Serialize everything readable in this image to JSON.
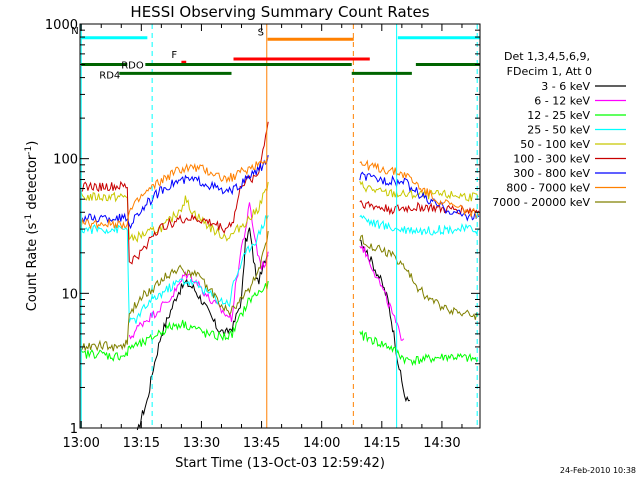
{
  "chart_data": {
    "type": "line",
    "title": "HESSI Observing Summary Count Rates",
    "xlabel": "Start Time (13-Oct-03 12:59:42)",
    "ylabel": {
      "prefix": "Count Rate (s",
      "sup1": "-1",
      "middle": " detector",
      "sup2": "-1",
      "suffix": ")"
    },
    "y_scale": "log",
    "ylim": [
      1,
      1000
    ],
    "x_unit": "minutes after 13:00",
    "xlim": [
      -0.3,
      99.5
    ],
    "x_ticks": [
      {
        "t": 0,
        "label": "13:00"
      },
      {
        "t": 15,
        "label": "13:15"
      },
      {
        "t": 30,
        "label": "13:30"
      },
      {
        "t": 45,
        "label": "13:45"
      },
      {
        "t": 60,
        "label": "14:00"
      },
      {
        "t": 75,
        "label": "14:15"
      },
      {
        "t": 90,
        "label": "14:30"
      }
    ],
    "y_ticks": [
      {
        "v": 1,
        "label": "1"
      },
      {
        "v": 10,
        "label": "10"
      },
      {
        "v": 100,
        "label": "100"
      },
      {
        "v": 1000,
        "label": "1000"
      }
    ],
    "legend": {
      "placement": "right",
      "header": [
        "Det 1,3,4,5,6,9,",
        "FDecim 1, Att 0"
      ]
    },
    "timestamp": "24-Feb-2010 10:38",
    "flag_bars": [
      {
        "label": "N",
        "color": "#00ffff",
        "y": 790,
        "segments": [
          [
            0,
            16.5
          ],
          [
            79,
            99.5
          ]
        ]
      },
      {
        "label": "F",
        "color": "#ff0000",
        "y": 520,
        "segments": [
          [
            25,
            26.2
          ]
        ]
      },
      {
        "label": "S",
        "color": "#ff8000",
        "y": 770,
        "segments": [
          [
            46.5,
            68
          ]
        ]
      },
      {
        "label": "",
        "color": "#ff0000",
        "y": 550,
        "segments": [
          [
            38,
            72
          ]
        ]
      },
      {
        "label": "RDO",
        "color": "#006400",
        "y": 500,
        "segments": [
          [
            0,
            11.5
          ],
          [
            16,
            37.5
          ],
          [
            37.5,
            67.5
          ],
          [
            83.5,
            99.5
          ]
        ]
      },
      {
        "label": "RD4",
        "color": "#006400",
        "y": 430,
        "segments": [
          [
            9.5,
            37.5
          ],
          [
            67.5,
            82.5
          ]
        ]
      }
    ],
    "vlines": [
      {
        "t": 0,
        "color": "#00ffff",
        "style": "solid"
      },
      {
        "t": 17.7,
        "color": "#00ffff",
        "style": "dashed"
      },
      {
        "t": 46.3,
        "color": "#ff8000",
        "style": "solid"
      },
      {
        "t": 67.9,
        "color": "#ff8000",
        "style": "dashed"
      },
      {
        "t": 78.7,
        "color": "#00ffff",
        "style": "solid"
      },
      {
        "t": 98.8,
        "color": "#00ffff",
        "style": "dashed"
      }
    ],
    "series": [
      {
        "name": "3 - 6 keV",
        "color": "#000000",
        "points": [
          [
            14,
            0.9
          ],
          [
            15,
            1.2
          ],
          [
            16.5,
            1.6
          ],
          [
            18,
            2.8
          ],
          [
            20,
            5
          ],
          [
            22,
            7
          ],
          [
            24,
            10
          ],
          [
            26,
            12
          ],
          [
            28,
            11
          ],
          [
            30,
            9
          ],
          [
            32,
            7
          ],
          [
            34,
            5.5
          ],
          [
            36,
            5
          ],
          [
            38,
            5.8
          ],
          [
            40,
            9
          ],
          [
            41,
            24
          ],
          [
            42,
            30
          ],
          [
            43,
            18
          ],
          [
            44,
            12
          ],
          [
            45,
            14
          ],
          [
            46,
            18
          ],
          [
            47,
            22
          ],
          [
            69.5,
            26
          ],
          [
            71,
            21
          ],
          [
            73,
            16
          ],
          [
            75,
            12
          ],
          [
            76.5,
            9
          ],
          [
            78,
            5
          ],
          [
            79,
            3.2
          ],
          [
            80,
            2.2
          ],
          [
            81,
            1.6
          ],
          [
            82,
            1.6
          ]
        ]
      },
      {
        "name": "6 - 12 keV",
        "color": "#ff00ff",
        "points": [
          [
            12,
            4.6
          ],
          [
            15,
            6
          ],
          [
            18,
            7
          ],
          [
            20,
            8
          ],
          [
            22,
            9
          ],
          [
            24,
            11
          ],
          [
            26,
            14
          ],
          [
            28,
            13
          ],
          [
            30,
            11
          ],
          [
            32,
            9
          ],
          [
            34,
            8
          ],
          [
            36,
            7
          ],
          [
            37.5,
            6.5
          ],
          [
            38.5,
            11
          ],
          [
            40,
            22
          ],
          [
            41,
            30
          ],
          [
            42,
            45
          ],
          [
            43,
            30
          ],
          [
            44,
            20
          ],
          [
            45,
            16
          ],
          [
            46,
            17
          ],
          [
            47,
            20
          ],
          [
            69.5,
            24
          ],
          [
            71,
            20
          ],
          [
            73,
            15
          ],
          [
            75,
            11
          ],
          [
            77,
            8
          ],
          [
            78.5,
            6
          ],
          [
            79.5,
            5
          ],
          [
            80.5,
            4.6
          ]
        ]
      },
      {
        "name": "12 - 25 keV",
        "color": "#00ff00",
        "points": [
          [
            0,
            3.5
          ],
          [
            4,
            3.6
          ],
          [
            8,
            3.4
          ],
          [
            11.5,
            3.5
          ],
          [
            12,
            4
          ],
          [
            15,
            4.2
          ],
          [
            17,
            4.5
          ],
          [
            19,
            5
          ],
          [
            22,
            5.6
          ],
          [
            25,
            6
          ],
          [
            28,
            5.6
          ],
          [
            31,
            5
          ],
          [
            34,
            4.8
          ],
          [
            37,
            4.8
          ],
          [
            38,
            5.2
          ],
          [
            40,
            7
          ],
          [
            42,
            9
          ],
          [
            44,
            10
          ],
          [
            46,
            11
          ],
          [
            47,
            12
          ],
          [
            69.5,
            5
          ],
          [
            72,
            4.6
          ],
          [
            75,
            4.2
          ],
          [
            77,
            4
          ],
          [
            79,
            3.6
          ],
          [
            81,
            3.2
          ],
          [
            84,
            3.2
          ],
          [
            88,
            3.3
          ],
          [
            92,
            3.4
          ],
          [
            96,
            3.3
          ],
          [
            99,
            3.2
          ]
        ]
      },
      {
        "name": "25 - 50 keV",
        "color": "#00ffff",
        "points": [
          [
            0,
            30
          ],
          [
            4,
            30
          ],
          [
            8,
            30
          ],
          [
            11.5,
            30
          ],
          [
            12,
            6
          ],
          [
            14,
            6.5
          ],
          [
            16,
            8
          ],
          [
            18,
            9
          ],
          [
            20,
            10
          ],
          [
            22,
            11
          ],
          [
            25,
            12.5
          ],
          [
            28,
            12
          ],
          [
            31,
            10.5
          ],
          [
            34,
            9
          ],
          [
            37,
            8.5
          ],
          [
            38,
            12
          ],
          [
            40,
            17
          ],
          [
            42,
            22
          ],
          [
            44,
            26
          ],
          [
            46,
            36
          ],
          [
            47,
            40
          ],
          [
            69.5,
            38
          ],
          [
            72,
            34
          ],
          [
            75,
            32
          ],
          [
            77,
            31
          ],
          [
            79,
            30
          ],
          [
            82,
            30
          ],
          [
            86,
            29
          ],
          [
            90,
            30
          ],
          [
            94,
            30
          ],
          [
            98,
            30
          ],
          [
            99.2,
            30
          ]
        ]
      },
      {
        "name": "50 - 100 keV",
        "color": "#c8c800",
        "points": [
          [
            0,
            52
          ],
          [
            5,
            52
          ],
          [
            11.5,
            52
          ],
          [
            12,
            25
          ],
          [
            15,
            27
          ],
          [
            18,
            29
          ],
          [
            21,
            32
          ],
          [
            24,
            40
          ],
          [
            25,
            44
          ],
          [
            26,
            50
          ],
          [
            27,
            44
          ],
          [
            28,
            40
          ],
          [
            31,
            33
          ],
          [
            34,
            28
          ],
          [
            37,
            26
          ],
          [
            38,
            28
          ],
          [
            40,
            32
          ],
          [
            42,
            36
          ],
          [
            44,
            42
          ],
          [
            46,
            58
          ],
          [
            47,
            66
          ],
          [
            69.5,
            64
          ],
          [
            72,
            60
          ],
          [
            75,
            56
          ],
          [
            78,
            55
          ],
          [
            81,
            54
          ],
          [
            85,
            54
          ],
          [
            90,
            54
          ],
          [
            95,
            53
          ],
          [
            99,
            52
          ]
        ]
      },
      {
        "name": "100 - 300 keV",
        "color": "#c80000",
        "points": [
          [
            0,
            62
          ],
          [
            5,
            62
          ],
          [
            11.5,
            62
          ],
          [
            12,
            17
          ],
          [
            15,
            20
          ],
          [
            18,
            28
          ],
          [
            21,
            32
          ],
          [
            24,
            35
          ],
          [
            27,
            36
          ],
          [
            30,
            35
          ],
          [
            33,
            33
          ],
          [
            36,
            30
          ],
          [
            38,
            35
          ],
          [
            40,
            65
          ],
          [
            42,
            70
          ],
          [
            44,
            76
          ],
          [
            45,
            100
          ],
          [
            46,
            150
          ],
          [
            47,
            215
          ],
          [
            69.5,
            48
          ],
          [
            72,
            45
          ],
          [
            75,
            43
          ],
          [
            78,
            42
          ],
          [
            82,
            43
          ],
          [
            86,
            44
          ],
          [
            90,
            42
          ],
          [
            94,
            42
          ],
          [
            98,
            41
          ],
          [
            99.2,
            41
          ]
        ]
      },
      {
        "name": "300 - 800 keV",
        "color": "#0000ff",
        "points": [
          [
            0,
            36
          ],
          [
            5,
            36
          ],
          [
            11.5,
            36
          ],
          [
            12,
            32
          ],
          [
            15,
            42
          ],
          [
            18,
            52
          ],
          [
            21,
            62
          ],
          [
            24,
            68
          ],
          [
            27,
            70
          ],
          [
            30,
            68
          ],
          [
            33,
            62
          ],
          [
            36,
            56
          ],
          [
            38,
            58
          ],
          [
            40,
            65
          ],
          [
            42,
            74
          ],
          [
            44,
            82
          ],
          [
            46,
            95
          ],
          [
            47,
            102
          ],
          [
            69.5,
            75
          ],
          [
            72,
            72
          ],
          [
            75,
            70
          ],
          [
            78,
            68
          ],
          [
            81,
            66
          ],
          [
            84,
            56
          ],
          [
            87,
            48
          ],
          [
            90,
            44
          ],
          [
            93,
            40
          ],
          [
            96,
            38
          ],
          [
            99.2,
            37
          ]
        ]
      },
      {
        "name": "800 - 7000 keV",
        "color": "#ff8000",
        "points": [
          [
            0,
            33
          ],
          [
            5,
            33
          ],
          [
            11.5,
            33
          ],
          [
            12,
            40
          ],
          [
            15,
            52
          ],
          [
            18,
            62
          ],
          [
            21,
            72
          ],
          [
            24,
            82
          ],
          [
            27,
            86
          ],
          [
            30,
            84
          ],
          [
            33,
            78
          ],
          [
            36,
            70
          ],
          [
            38,
            74
          ],
          [
            40,
            80
          ],
          [
            42,
            85
          ],
          [
            44,
            92
          ],
          [
            46,
            100
          ],
          [
            47,
            104
          ],
          [
            69.5,
            92
          ],
          [
            72,
            88
          ],
          [
            75,
            84
          ],
          [
            78,
            80
          ],
          [
            81,
            76
          ],
          [
            84,
            63
          ],
          [
            87,
            54
          ],
          [
            90,
            48
          ],
          [
            93,
            44
          ],
          [
            96,
            41
          ],
          [
            99.2,
            39
          ]
        ]
      },
      {
        "name": "7000 - 20000 keV",
        "color": "#808000",
        "points": [
          [
            0,
            4
          ],
          [
            4,
            4.1
          ],
          [
            8,
            4
          ],
          [
            11.5,
            4.2
          ],
          [
            12,
            7
          ],
          [
            14,
            8.5
          ],
          [
            16,
            10
          ],
          [
            18,
            11
          ],
          [
            20,
            12.5
          ],
          [
            22,
            14
          ],
          [
            25,
            15.5
          ],
          [
            28,
            14
          ],
          [
            31,
            12
          ],
          [
            34,
            9
          ],
          [
            37,
            7
          ],
          [
            38,
            8
          ],
          [
            40,
            9
          ],
          [
            42,
            11
          ],
          [
            44,
            14
          ],
          [
            46,
            22
          ],
          [
            47,
            30
          ],
          [
            69.5,
            26
          ],
          [
            72,
            23
          ],
          [
            75,
            21
          ],
          [
            78,
            19
          ],
          [
            81,
            15
          ],
          [
            84,
            11
          ],
          [
            87,
            9
          ],
          [
            90,
            8
          ],
          [
            93,
            7.5
          ],
          [
            96,
            7
          ],
          [
            99,
            6.8
          ]
        ]
      }
    ]
  }
}
